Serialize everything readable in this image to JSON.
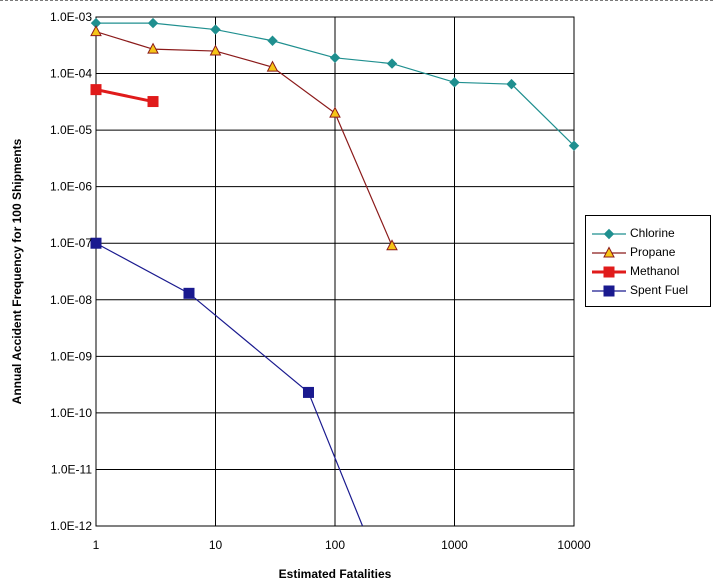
{
  "chart_data": {
    "type": "line",
    "title": "",
    "xlabel": "Estimated Fatalities",
    "ylabel": "Annual Accident Frequency for 100 Shipments",
    "xscale": "log",
    "yscale": "log",
    "xlim": [
      1,
      10000
    ],
    "ylim": [
      1e-12,
      0.001
    ],
    "x_ticks": [
      1,
      10,
      100,
      1000,
      10000
    ],
    "x_tick_labels": [
      "1",
      "10",
      "100",
      "1000",
      "10000"
    ],
    "y_ticks": [
      1e-12,
      1e-11,
      1e-10,
      1e-09,
      1e-08,
      1e-07,
      1e-06,
      1e-05,
      0.0001,
      0.001
    ],
    "y_tick_labels": [
      "1.0E-12",
      "1.0E-11",
      "1.0E-10",
      "1.0E-09",
      "1.0E-08",
      "1.0E-07",
      "1.0E-06",
      "1.0E-05",
      "1.0E-04",
      "1.0E-03"
    ],
    "grid": true,
    "legend_position": "right",
    "series": [
      {
        "name": "Chlorine",
        "color": "#1f8f8f",
        "marker": "diamond",
        "points": [
          [
            1,
            0.00078
          ],
          [
            3,
            0.00078
          ],
          [
            10,
            0.0006
          ],
          [
            30,
            0.00038
          ],
          [
            100,
            0.00019
          ],
          [
            300,
            0.00015
          ],
          [
            1000,
            7e-05
          ],
          [
            3000,
            6.5e-05
          ],
          [
            10000,
            5.3e-06
          ]
        ]
      },
      {
        "name": "Propane",
        "color": "#8b1a1a",
        "marker": "triangle",
        "marker_fill": "#f5c518",
        "points": [
          [
            1,
            0.00055
          ],
          [
            3,
            0.00027
          ],
          [
            10,
            0.00025
          ],
          [
            30,
            0.00013
          ],
          [
            100,
            2e-05
          ],
          [
            300,
            9e-08
          ]
        ]
      },
      {
        "name": "Methanol",
        "color": "#e01b1b",
        "marker": "square",
        "points": [
          [
            1,
            5.2e-05
          ],
          [
            3,
            3.2e-05
          ]
        ]
      },
      {
        "name": "Spent Fuel",
        "color": "#1a1a8f",
        "marker": "square",
        "points": [
          [
            1,
            1e-07
          ],
          [
            6,
            1.3e-08
          ],
          [
            60,
            2.3e-10
          ],
          [
            170,
            1e-12
          ]
        ],
        "marker_count": 3
      }
    ]
  }
}
